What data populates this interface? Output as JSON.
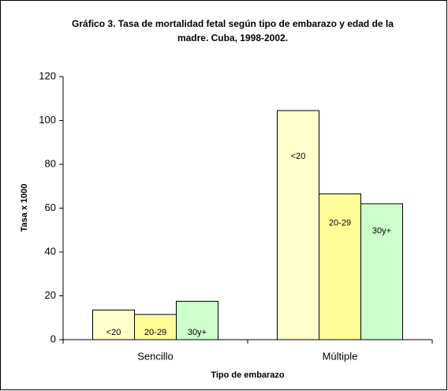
{
  "chart_data": {
    "type": "bar",
    "title": "Gráfico 3. Tasa de mortalidad fetal según tipo de embarazo y edad de la madre. Cuba, 1998-2002.",
    "x_label": "Tipo de embarazo",
    "y_label": "Tasa x 1000",
    "categories": [
      "Sencillo",
      "Múltiple"
    ],
    "series": [
      {
        "name": "<20",
        "color": "#ffffcc",
        "values": [
          13.5,
          104.5
        ]
      },
      {
        "name": "20-29",
        "color": "#ffff99",
        "values": [
          11.5,
          66.5
        ]
      },
      {
        "name": "30y+",
        "color": "#ccffcc",
        "values": [
          17.5,
          62
        ]
      }
    ],
    "ylim": [
      0,
      120
    ],
    "yticks": [
      0,
      20,
      40,
      60,
      80,
      100,
      120
    ],
    "grid": false
  }
}
